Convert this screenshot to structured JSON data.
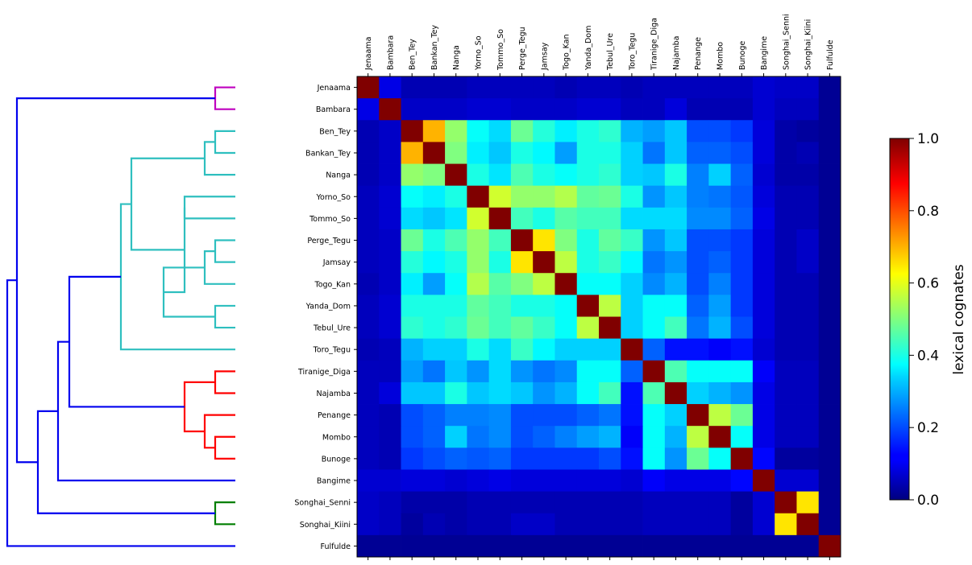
{
  "chart_data": {
    "type": "heatmap",
    "title": "",
    "languages": [
      "Jenaama",
      "Bambara",
      "Ben_Tey",
      "Bankan_Tey",
      "Nanga",
      "Yorno_So",
      "Tommo_So",
      "Perge_Tegu",
      "Jamsay",
      "Togo_Kan",
      "Yanda_Dom",
      "Tebul_Ure",
      "Toro_Tegu",
      "Tiranige_Diga",
      "Najamba",
      "Penange",
      "Mombo",
      "Bunoge",
      "Bangime",
      "Songhai_Senni",
      "Songhai_Kiini",
      "Fulfulde"
    ],
    "colorbar": {
      "label": "lexical cognates",
      "range": [
        0,
        1
      ],
      "ticks": [
        "0.0",
        "0.2",
        "0.4",
        "0.6",
        "0.8",
        "1.0"
      ],
      "colormap": "jet"
    },
    "matrix": [
      [
        1.0,
        0.1,
        0.05,
        0.05,
        0.05,
        0.06,
        0.06,
        0.06,
        0.06,
        0.05,
        0.06,
        0.06,
        0.05,
        0.06,
        0.06,
        0.06,
        0.06,
        0.06,
        0.08,
        0.07,
        0.07,
        0.02
      ],
      [
        0.1,
        1.0,
        0.07,
        0.07,
        0.07,
        0.08,
        0.08,
        0.07,
        0.07,
        0.07,
        0.08,
        0.08,
        0.06,
        0.06,
        0.09,
        0.05,
        0.05,
        0.05,
        0.08,
        0.06,
        0.06,
        0.02
      ],
      [
        0.05,
        0.07,
        1.0,
        0.7,
        0.52,
        0.38,
        0.34,
        0.48,
        0.41,
        0.36,
        0.4,
        0.42,
        0.3,
        0.28,
        0.32,
        0.2,
        0.2,
        0.18,
        0.09,
        0.04,
        0.03,
        0.02
      ],
      [
        0.05,
        0.07,
        0.7,
        1.0,
        0.5,
        0.36,
        0.32,
        0.4,
        0.37,
        0.28,
        0.4,
        0.4,
        0.33,
        0.24,
        0.32,
        0.22,
        0.22,
        0.2,
        0.09,
        0.04,
        0.05,
        0.02
      ],
      [
        0.05,
        0.07,
        0.52,
        0.5,
        1.0,
        0.4,
        0.35,
        0.45,
        0.4,
        0.38,
        0.4,
        0.42,
        0.33,
        0.32,
        0.4,
        0.25,
        0.33,
        0.22,
        0.08,
        0.04,
        0.04,
        0.02
      ],
      [
        0.06,
        0.08,
        0.38,
        0.36,
        0.4,
        1.0,
        0.58,
        0.52,
        0.52,
        0.55,
        0.47,
        0.48,
        0.4,
        0.27,
        0.32,
        0.25,
        0.24,
        0.21,
        0.09,
        0.05,
        0.05,
        0.02
      ],
      [
        0.06,
        0.08,
        0.34,
        0.32,
        0.35,
        0.58,
        1.0,
        0.44,
        0.4,
        0.46,
        0.44,
        0.44,
        0.34,
        0.34,
        0.34,
        0.26,
        0.26,
        0.22,
        0.1,
        0.05,
        0.05,
        0.02
      ],
      [
        0.06,
        0.07,
        0.48,
        0.4,
        0.45,
        0.52,
        0.44,
        1.0,
        0.65,
        0.5,
        0.4,
        0.47,
        0.43,
        0.27,
        0.32,
        0.2,
        0.2,
        0.18,
        0.09,
        0.05,
        0.07,
        0.02
      ],
      [
        0.06,
        0.07,
        0.41,
        0.37,
        0.4,
        0.52,
        0.4,
        0.65,
        1.0,
        0.56,
        0.4,
        0.43,
        0.37,
        0.24,
        0.27,
        0.2,
        0.22,
        0.18,
        0.09,
        0.05,
        0.07,
        0.02
      ],
      [
        0.05,
        0.07,
        0.36,
        0.28,
        0.38,
        0.55,
        0.46,
        0.5,
        0.56,
        1.0,
        0.38,
        0.38,
        0.33,
        0.26,
        0.3,
        0.2,
        0.25,
        0.18,
        0.09,
        0.05,
        0.05,
        0.02
      ],
      [
        0.06,
        0.08,
        0.4,
        0.4,
        0.4,
        0.47,
        0.44,
        0.4,
        0.4,
        0.38,
        1.0,
        0.56,
        0.33,
        0.38,
        0.38,
        0.22,
        0.28,
        0.18,
        0.09,
        0.05,
        0.05,
        0.02
      ],
      [
        0.06,
        0.08,
        0.42,
        0.4,
        0.42,
        0.48,
        0.44,
        0.47,
        0.43,
        0.38,
        0.56,
        1.0,
        0.33,
        0.38,
        0.44,
        0.24,
        0.3,
        0.2,
        0.09,
        0.05,
        0.05,
        0.02
      ],
      [
        0.05,
        0.06,
        0.3,
        0.33,
        0.33,
        0.4,
        0.34,
        0.43,
        0.37,
        0.33,
        0.33,
        0.33,
        1.0,
        0.22,
        0.14,
        0.14,
        0.12,
        0.14,
        0.08,
        0.05,
        0.05,
        0.02
      ],
      [
        0.06,
        0.06,
        0.28,
        0.24,
        0.32,
        0.27,
        0.34,
        0.27,
        0.24,
        0.26,
        0.38,
        0.38,
        0.22,
        1.0,
        0.45,
        0.38,
        0.38,
        0.38,
        0.12,
        0.06,
        0.06,
        0.02
      ],
      [
        0.06,
        0.09,
        0.32,
        0.32,
        0.4,
        0.32,
        0.34,
        0.32,
        0.27,
        0.3,
        0.38,
        0.44,
        0.14,
        0.45,
        1.0,
        0.33,
        0.3,
        0.27,
        0.1,
        0.06,
        0.06,
        0.02
      ],
      [
        0.06,
        0.05,
        0.2,
        0.22,
        0.25,
        0.25,
        0.26,
        0.2,
        0.2,
        0.2,
        0.22,
        0.24,
        0.14,
        0.38,
        0.33,
        1.0,
        0.56,
        0.48,
        0.1,
        0.06,
        0.06,
        0.02
      ],
      [
        0.06,
        0.05,
        0.2,
        0.22,
        0.33,
        0.24,
        0.26,
        0.2,
        0.22,
        0.25,
        0.28,
        0.3,
        0.12,
        0.38,
        0.3,
        0.56,
        1.0,
        0.38,
        0.1,
        0.06,
        0.06,
        0.02
      ],
      [
        0.06,
        0.05,
        0.18,
        0.2,
        0.22,
        0.21,
        0.22,
        0.18,
        0.18,
        0.18,
        0.18,
        0.2,
        0.14,
        0.38,
        0.27,
        0.48,
        0.38,
        1.0,
        0.13,
        0.03,
        0.03,
        0.02
      ],
      [
        0.08,
        0.08,
        0.09,
        0.09,
        0.08,
        0.09,
        0.1,
        0.09,
        0.09,
        0.09,
        0.09,
        0.09,
        0.08,
        0.12,
        0.1,
        0.1,
        0.1,
        0.13,
        1.0,
        0.08,
        0.08,
        0.02
      ],
      [
        0.07,
        0.06,
        0.04,
        0.04,
        0.04,
        0.05,
        0.05,
        0.05,
        0.05,
        0.05,
        0.05,
        0.05,
        0.05,
        0.06,
        0.06,
        0.06,
        0.06,
        0.03,
        0.08,
        1.0,
        0.65,
        0.02
      ],
      [
        0.07,
        0.06,
        0.03,
        0.05,
        0.04,
        0.05,
        0.05,
        0.07,
        0.07,
        0.05,
        0.05,
        0.05,
        0.05,
        0.06,
        0.06,
        0.06,
        0.06,
        0.03,
        0.08,
        0.65,
        1.0,
        0.02
      ],
      [
        0.02,
        0.02,
        0.02,
        0.02,
        0.02,
        0.02,
        0.02,
        0.02,
        0.02,
        0.02,
        0.02,
        0.02,
        0.02,
        0.02,
        0.02,
        0.02,
        0.02,
        0.02,
        0.02,
        0.02,
        0.02,
        1.0
      ]
    ],
    "dendrogram": {
      "colors": {
        "magenta": "#bf00bf",
        "cyan": "#2ebfbf",
        "red": "#ff0000",
        "green": "#007f00",
        "blue": "#0000ee"
      },
      "links": [
        {
          "children": [
            "Jenaama",
            "Bambara"
          ],
          "color": "magenta"
        },
        {
          "children": [
            "Ben_Tey",
            "Bankan_Tey"
          ],
          "color": "cyan"
        },
        {
          "children": [
            "Ben_Tey+Bankan_Tey",
            "Nanga"
          ],
          "color": "cyan"
        },
        {
          "children": [
            "Yorno_So",
            "Tommo_So"
          ],
          "color": "cyan"
        },
        {
          "children": [
            "Perge_Tegu",
            "Jamsay"
          ],
          "color": "cyan"
        },
        {
          "children": [
            "Perge_Tegu+Jamsay",
            "Togo_Kan"
          ],
          "color": "cyan"
        },
        {
          "children": [
            "Yanda_Dom",
            "Tebul_Ure"
          ],
          "color": "cyan"
        },
        {
          "children": [
            "Perge_Tegu+Jamsay+Togo_Kan",
            "Yanda_Dom+Tebul_Ure"
          ],
          "color": "cyan"
        },
        {
          "children": [
            "Yorno_So+Tommo_So",
            "Perge_Tegu..Tebul_Ure"
          ],
          "color": "cyan"
        },
        {
          "children": [
            "Ben_Tey+Bankan_Tey+Nanga",
            "Yorno_So..Tebul_Ure"
          ],
          "color": "cyan"
        },
        {
          "children": [
            "Ben_Tey..Tebul_Ure",
            "Toro_Tegu"
          ],
          "color": "cyan"
        },
        {
          "children": [
            "Tiranige_Diga",
            "Najamba"
          ],
          "color": "red"
        },
        {
          "children": [
            "Mombo",
            "Bunoge"
          ],
          "color": "red"
        },
        {
          "children": [
            "Penange",
            "Mombo+Bunoge"
          ],
          "color": "red"
        },
        {
          "children": [
            "Tiranige_Diga+Najamba",
            "Penange+Mombo+Bunoge"
          ],
          "color": "red"
        },
        {
          "children": [
            "Dogon",
            "Tiranige..Bunoge"
          ],
          "color": "blue"
        },
        {
          "children": [
            "Dogon+Tiranige..Bunoge",
            "Bangime"
          ],
          "color": "blue"
        },
        {
          "children": [
            "Songhai_Senni",
            "Songhai_Kiini"
          ],
          "color": "green"
        },
        {
          "children": [
            "Dogon..Bangime",
            "Songhai"
          ],
          "color": "blue"
        },
        {
          "children": [
            "Jenaama+Bambara",
            "Dogon..Songhai"
          ],
          "color": "blue"
        },
        {
          "children": [
            "Jenaama..Songhai",
            "Fulfulde"
          ],
          "color": "blue"
        }
      ]
    }
  }
}
